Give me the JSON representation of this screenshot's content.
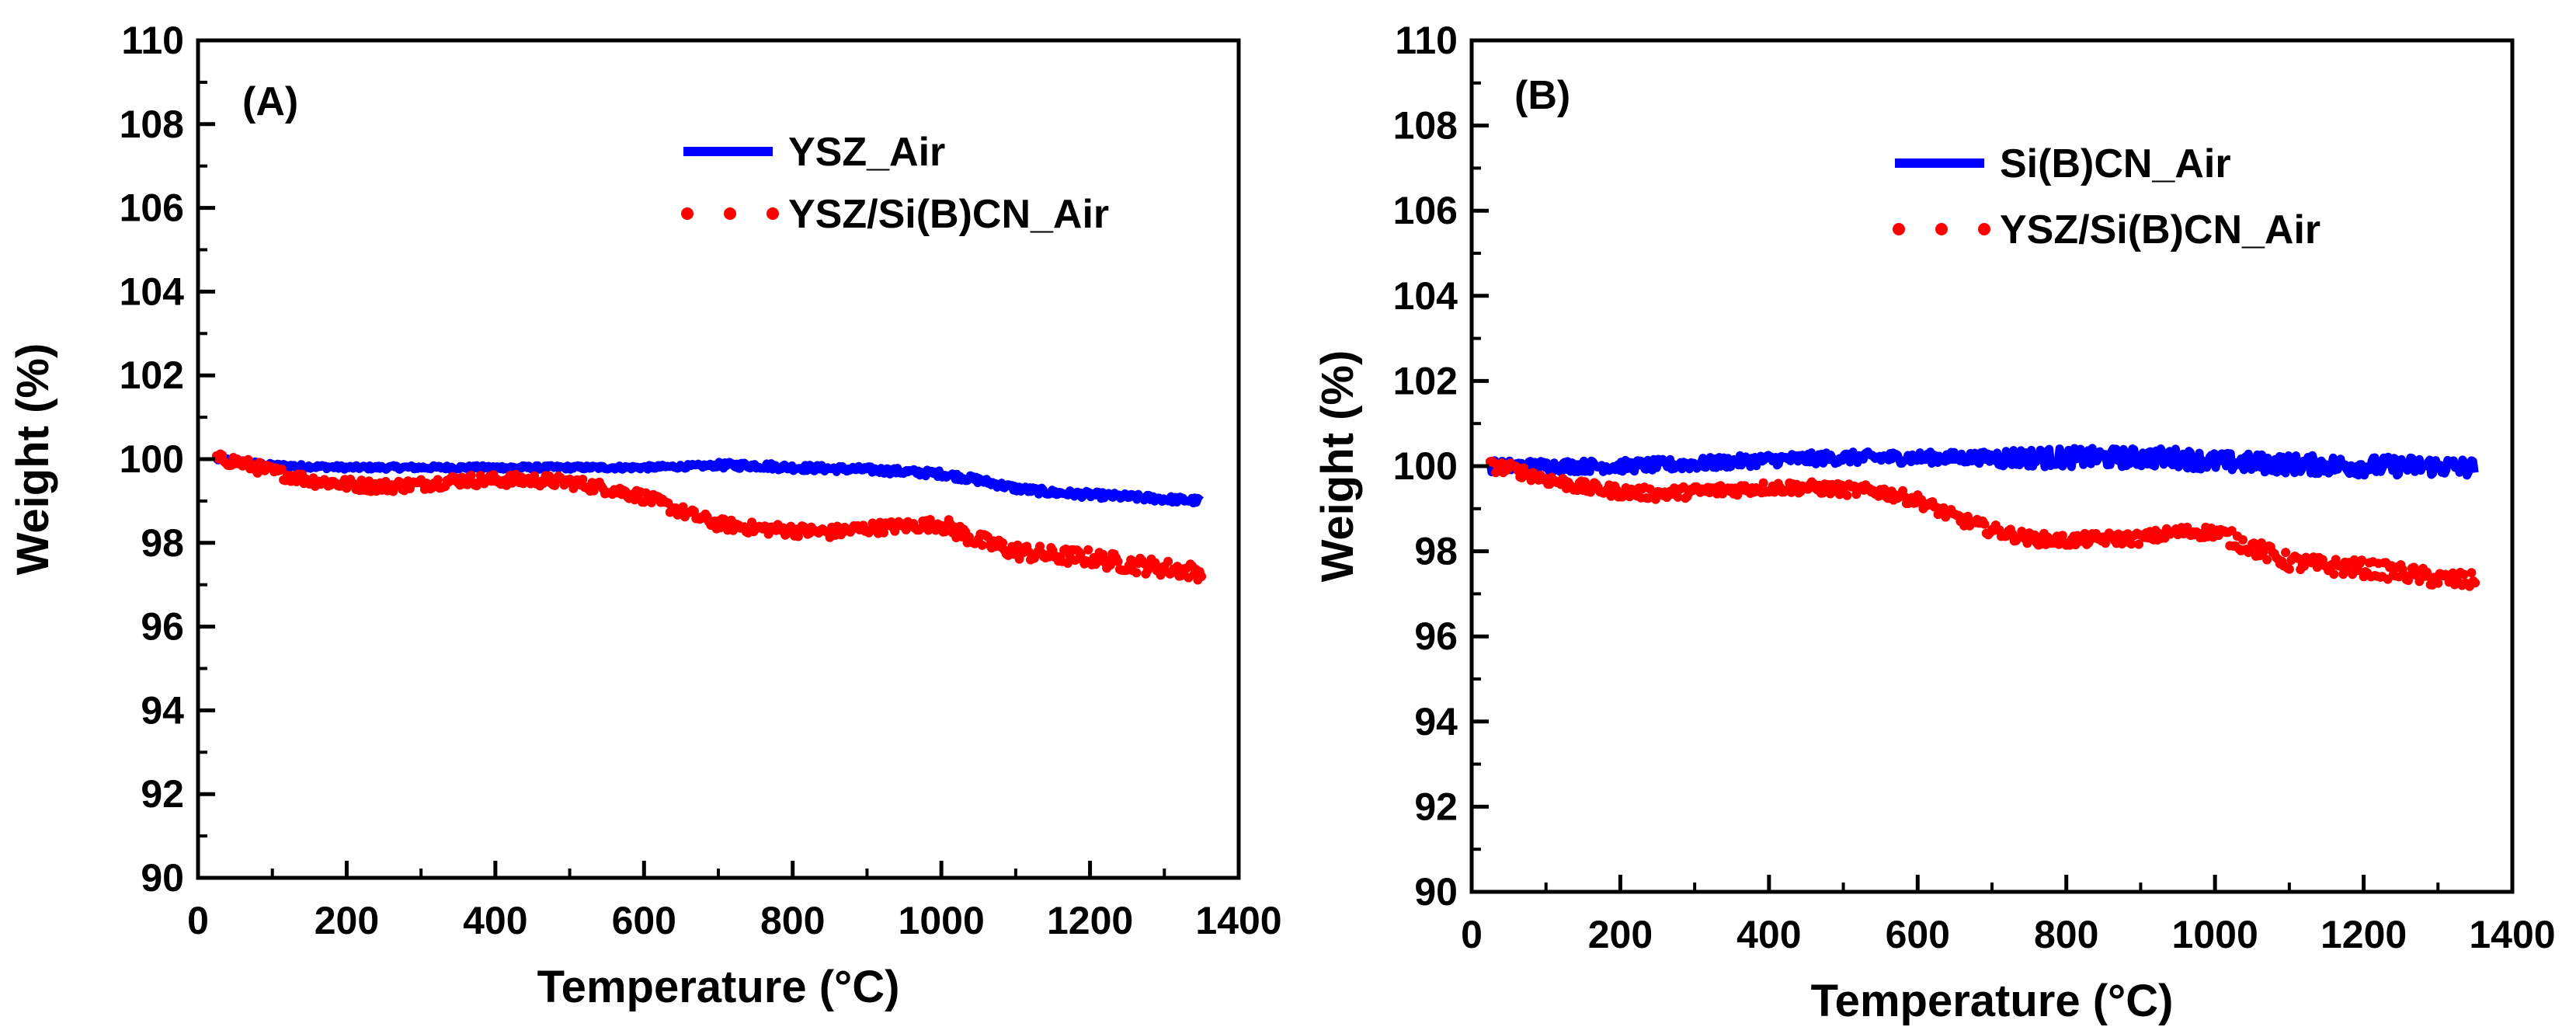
{
  "chart_data": [
    {
      "type": "line",
      "panel_label": "(A)",
      "xlabel": "Temperature (°C)",
      "ylabel": "Weight (%)",
      "xlim": [
        0,
        1400
      ],
      "ylim": [
        90,
        110
      ],
      "xticks": [
        "0",
        "200",
        "400",
        "600",
        "800",
        "1000",
        "1200",
        "1400"
      ],
      "yticks": [
        "90",
        "92",
        "94",
        "96",
        "98",
        "100",
        "102",
        "104",
        "106",
        "108",
        "110"
      ],
      "legend_position": "top-right",
      "series": [
        {
          "name": "YSZ_Air",
          "color": "#0000ff",
          "style": "solid",
          "x": [
            25,
            50,
            100,
            200,
            300,
            400,
            500,
            600,
            700,
            750,
            800,
            900,
            1000,
            1050,
            1100,
            1150,
            1200,
            1250,
            1300,
            1350
          ],
          "y": [
            100.0,
            99.95,
            99.85,
            99.8,
            99.8,
            99.8,
            99.8,
            99.8,
            99.85,
            99.85,
            99.8,
            99.75,
            99.65,
            99.5,
            99.3,
            99.2,
            99.15,
            99.1,
            99.05,
            99.0
          ]
        },
        {
          "name": "YSZ/Si(B)CN_Air",
          "color": "#ff0000",
          "style": "dotted",
          "x": [
            25,
            50,
            100,
            150,
            200,
            250,
            300,
            350,
            400,
            450,
            500,
            550,
            600,
            650,
            700,
            750,
            800,
            850,
            900,
            950,
            1000,
            1050,
            1100,
            1150,
            1200,
            1250,
            1300,
            1350
          ],
          "y": [
            100.0,
            99.95,
            99.7,
            99.5,
            99.4,
            99.35,
            99.4,
            99.5,
            99.5,
            99.5,
            99.45,
            99.3,
            99.1,
            98.75,
            98.45,
            98.35,
            98.3,
            98.25,
            98.35,
            98.4,
            98.45,
            98.05,
            97.8,
            97.7,
            97.65,
            97.5,
            97.4,
            97.3
          ]
        }
      ]
    },
    {
      "type": "line",
      "panel_label": "(B)",
      "xlabel": "Temperature (°C)",
      "ylabel": "Weight (%)",
      "xlim": [
        0,
        1400
      ],
      "ylim": [
        90,
        110
      ],
      "xticks": [
        "0",
        "200",
        "400",
        "600",
        "800",
        "1000",
        "1200",
        "1400"
      ],
      "yticks": [
        "90",
        "92",
        "94",
        "96",
        "98",
        "100",
        "102",
        "104",
        "106",
        "108",
        "110"
      ],
      "legend_position": "top-right",
      "series": [
        {
          "name": "Si(B)CN_Air",
          "color": "#0000ff",
          "style": "solid",
          "x": [
            25,
            100,
            200,
            300,
            350,
            400,
            500,
            600,
            700,
            800,
            900,
            950,
            1000,
            1100,
            1200,
            1300,
            1350
          ],
          "y": [
            100.0,
            100.0,
            100.0,
            100.05,
            100.1,
            100.15,
            100.2,
            100.2,
            100.2,
            100.2,
            100.2,
            100.2,
            100.1,
            100.05,
            100.0,
            100.0,
            99.95
          ]
        },
        {
          "name": "YSZ/Si(B)CN_Air",
          "color": "#ff0000",
          "style": "dotted",
          "x": [
            25,
            50,
            100,
            150,
            200,
            250,
            300,
            350,
            400,
            450,
            500,
            550,
            600,
            650,
            700,
            750,
            800,
            850,
            900,
            950,
            1000,
            1050,
            1100,
            1150,
            1200,
            1250,
            1300,
            1350
          ],
          "y": [
            100.0,
            99.95,
            99.7,
            99.5,
            99.4,
            99.35,
            99.4,
            99.45,
            99.5,
            99.5,
            99.45,
            99.4,
            99.2,
            98.8,
            98.5,
            98.3,
            98.25,
            98.3,
            98.3,
            98.45,
            98.45,
            98.1,
            97.75,
            97.65,
            97.6,
            97.5,
            97.35,
            97.3
          ]
        }
      ]
    }
  ]
}
